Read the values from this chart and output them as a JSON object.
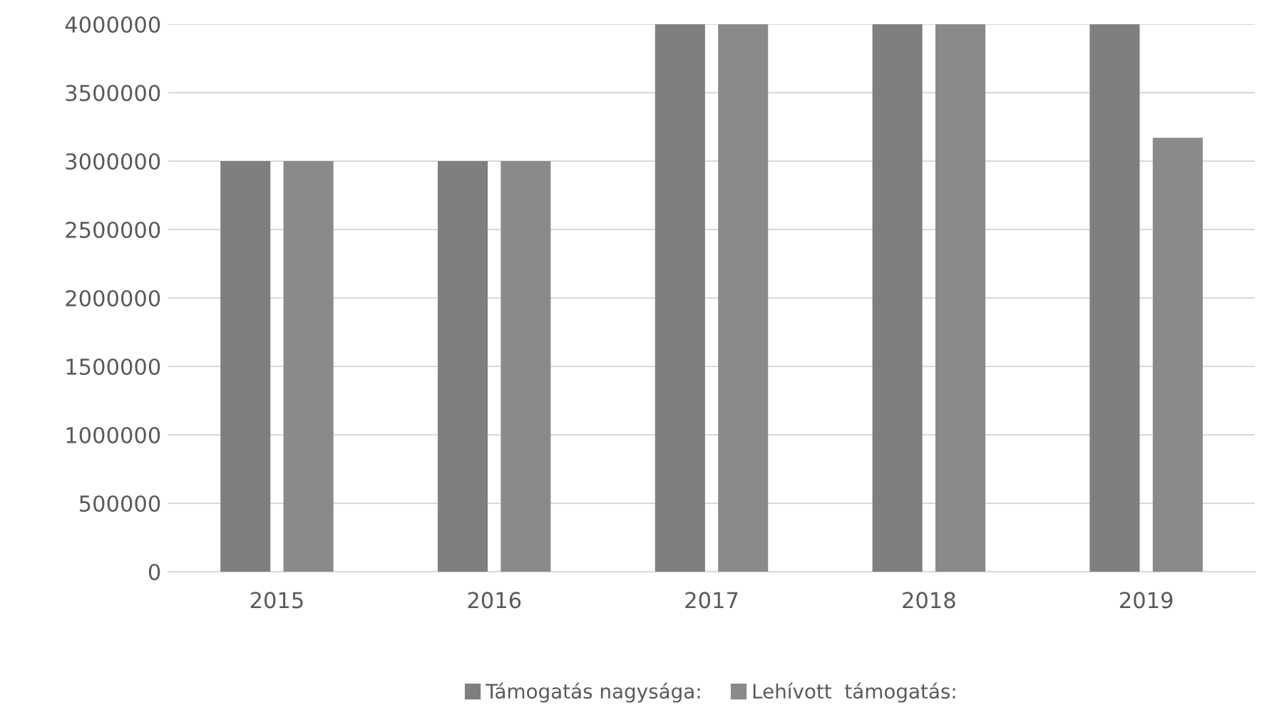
{
  "chart_data": {
    "type": "bar",
    "categories": [
      "2015",
      "2016",
      "2017",
      "2018",
      "2019"
    ],
    "series": [
      {
        "name": "Támogatás nagysága:",
        "color": "#7f7f7f",
        "values": [
          3000000,
          3000000,
          4000000,
          4000000,
          4000000
        ]
      },
      {
        "name": "Lehívott  támogatás:",
        "color": "#8a8a8a",
        "values": [
          3000000,
          3000000,
          4000000,
          4000000,
          3170000
        ]
      }
    ],
    "ylim": [
      0,
      4000000
    ],
    "yticks": [
      0,
      500000,
      1000000,
      1500000,
      2000000,
      2500000,
      3000000,
      3500000,
      4000000
    ],
    "grid": "y",
    "legend": "bottom"
  }
}
